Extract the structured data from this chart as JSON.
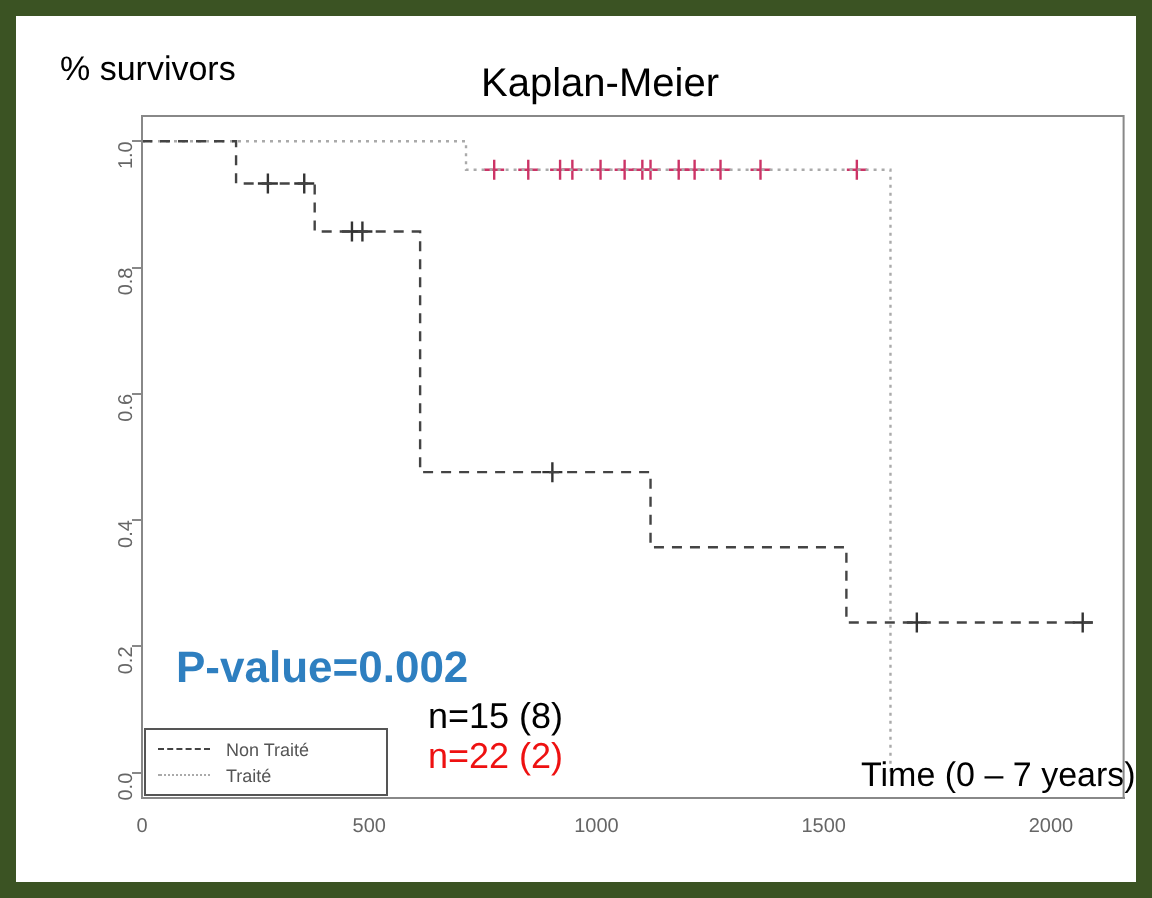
{
  "chart_data": {
    "type": "step",
    "title": "Kaplan-Meier",
    "ylabel": "% survivors",
    "xlabel": "Time (0 – 7 years)",
    "xlim": [
      0,
      2160
    ],
    "xticks": [
      0,
      500,
      1000,
      1500,
      2000
    ],
    "ylim": [
      -0.04,
      1.04
    ],
    "yticks": [
      {
        "value": 0,
        "label": "0.0"
      },
      {
        "value": 0.2,
        "label": "0.2"
      },
      {
        "value": 0.4,
        "label": "0.4"
      },
      {
        "value": 0.6,
        "label": "0.6"
      },
      {
        "value": 0.8,
        "label": "0.8"
      },
      {
        "value": 1,
        "label": "1.0"
      }
    ],
    "grid": false,
    "legend": "bottom left",
    "series": [
      {
        "name": "Non Traité",
        "color": "#444444",
        "line_style": "dashed",
        "marker": "none",
        "x": [
          0,
          207,
          380,
          612,
          1119,
          1550,
          2100
        ],
        "values": [
          1,
          0.933,
          0.857,
          0.476,
          0.357,
          0.238,
          0.238
        ]
      },
      {
        "name": "Traité",
        "color": "#aaaaaa",
        "line_style": "dotted",
        "marker": "none",
        "x": [
          0,
          713,
          1647
        ],
        "values": [
          1,
          0.955,
          0
        ]
      },
      {
        "type": "scatter",
        "color": "#333333",
        "marker": "cross",
        "x": [
          277,
          357,
          462,
          485,
          903,
          1705,
          2070
        ],
        "values": [
          0.933,
          0.933,
          0.857,
          0.857,
          0.476,
          0.238,
          0.238
        ]
      },
      {
        "type": "scatter",
        "color": "#cc3366",
        "marker": "cross",
        "x": [
          775,
          850,
          920,
          947,
          1009,
          1062,
          1101,
          1119,
          1181,
          1216,
          1273,
          1361,
          1573
        ],
        "values": [
          0.955,
          0.955,
          0.955,
          0.955,
          0.955,
          0.955,
          0.955,
          0.955,
          0.955,
          0.955,
          0.955,
          0.955,
          0.955
        ]
      }
    ],
    "annotations": [
      "P-value=0.002",
      "n=15 (8)",
      "n=22 (2)"
    ]
  }
}
